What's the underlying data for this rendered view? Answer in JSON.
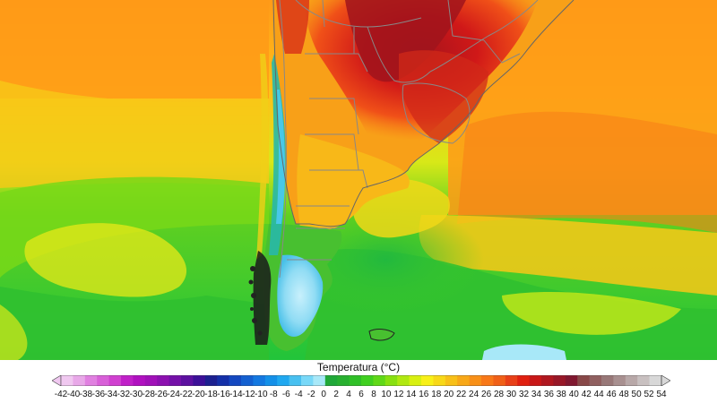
{
  "map": {
    "variable": "temperature",
    "background_colors": {
      "cold_ocean": "#22c43a",
      "mid_ocean": "#c8e51a",
      "warm_ocean": "#ff9a18",
      "hot_land": "#e02010",
      "very_hot_land": "#a8141c",
      "andes_cold": "#48c8e8",
      "patagonia_ice": "#a8e8f8",
      "border_lines": "#888888"
    }
  },
  "legend": {
    "title": "Temperatura (°C)",
    "ticks": [
      "-42",
      "-40",
      "-38",
      "-36",
      "-34",
      "-32",
      "-30",
      "-28",
      "-26",
      "-24",
      "-22",
      "-20",
      "-18",
      "-16",
      "-14",
      "-12",
      "-10",
      "-8",
      "-6",
      "-4",
      "-2",
      "0",
      "2",
      "4",
      "6",
      "8",
      "10",
      "12",
      "14",
      "16",
      "18",
      "20",
      "22",
      "24",
      "26",
      "28",
      "30",
      "32",
      "34",
      "36",
      "38",
      "40",
      "42",
      "44",
      "46",
      "48",
      "50",
      "52",
      "54"
    ],
    "colors": [
      "#f0c8f0",
      "#e8a8e8",
      "#e080e0",
      "#d860d8",
      "#d040d0",
      "#c020c8",
      "#b010c0",
      "#a010b8",
      "#8c10b0",
      "#7410a8",
      "#5c10a0",
      "#3c1098",
      "#1c2090",
      "#1430a8",
      "#1448c0",
      "#1460d0",
      "#1478e0",
      "#1490e8",
      "#20a8f0",
      "#48c0f0",
      "#78d8f8",
      "#a8e8f8",
      "#20a838",
      "#28b030",
      "#30c028",
      "#40d020",
      "#60d818",
      "#88e010",
      "#b0e810",
      "#d8f010",
      "#f8f018",
      "#f8d818",
      "#f8c018",
      "#f8a818",
      "#f89018",
      "#f87818",
      "#f06018",
      "#e84018",
      "#e02010",
      "#c81818",
      "#b01820",
      "#981828",
      "#801830",
      "#884848",
      "#906060",
      "#987878",
      "#a89090",
      "#b8a8a8",
      "#c8c0c0",
      "#d8d8d8"
    ]
  }
}
